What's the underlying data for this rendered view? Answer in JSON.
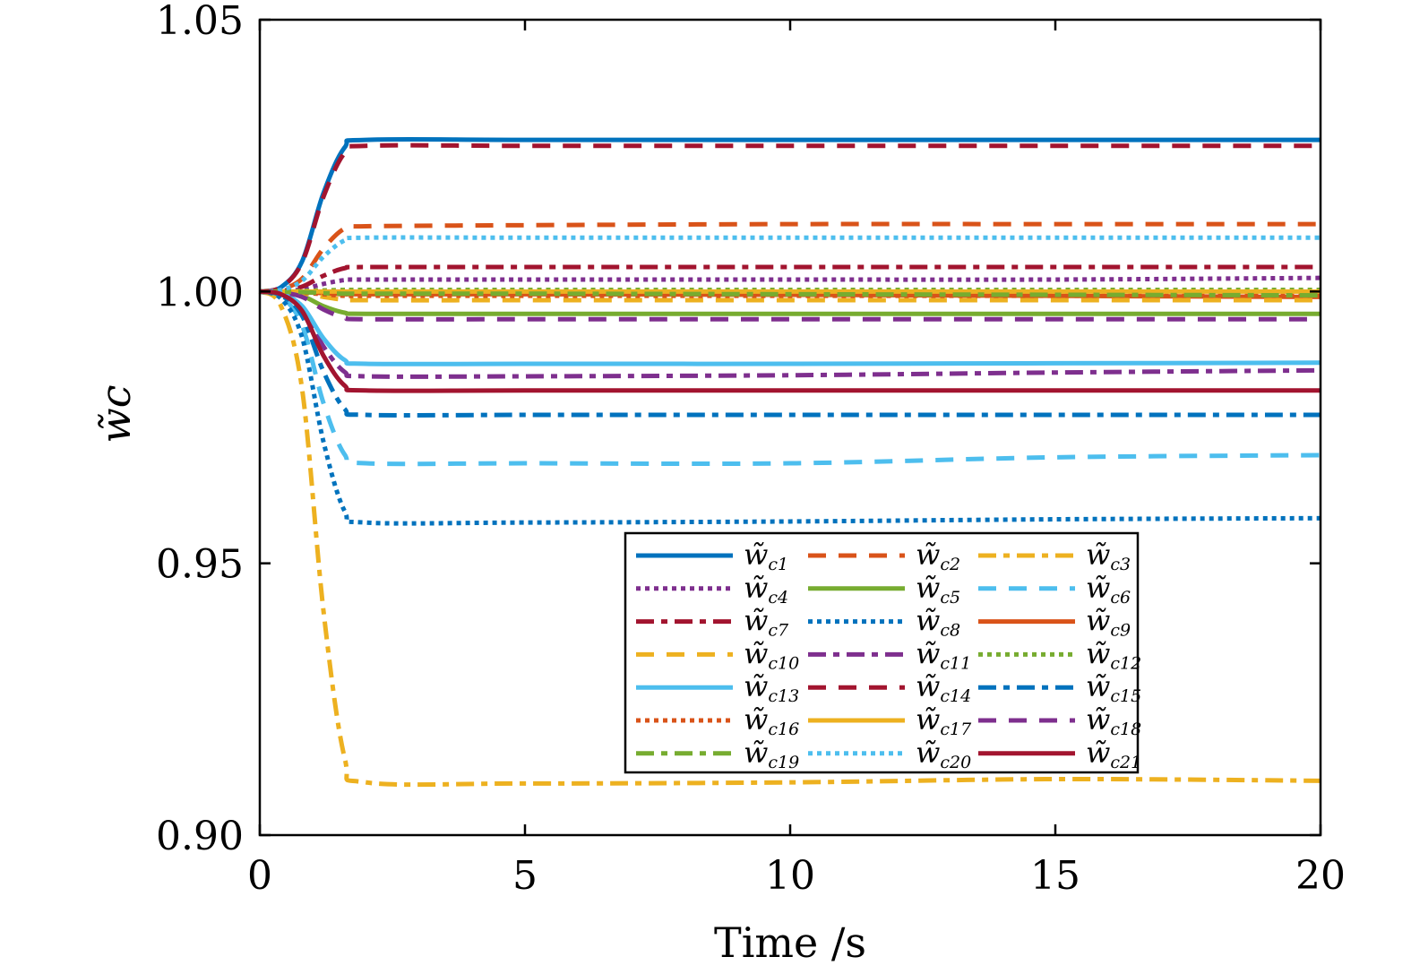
{
  "chart_data": {
    "type": "line",
    "title": "",
    "xlabel": "Time /s",
    "ylabel": "w̃c",
    "xlim": [
      0,
      20
    ],
    "ylim": [
      0.9,
      1.05
    ],
    "xticks": [
      "0",
      "5",
      "10",
      "15",
      "20"
    ],
    "yticks": [
      "0.90",
      "0.95",
      "1.00",
      "1.05"
    ],
    "grid": false,
    "legend_placement": "lower-right",
    "x": [
      0,
      0.4,
      0.8,
      1.2,
      1.6,
      2,
      5,
      10,
      15,
      20
    ],
    "series": [
      {
        "name": "w̃c1",
        "color": "#0072BD",
        "style": "solid",
        "values": [
          1,
          1.0008,
          1.0056,
          1.0181,
          1.0265,
          1.0279,
          1.0279,
          1.0279,
          1.0279,
          1.0279
        ]
      },
      {
        "name": "w̃c2",
        "color": "#D95319",
        "style": "dashed",
        "values": [
          1,
          1.0004,
          1.0024,
          1.0079,
          1.0116,
          1.012,
          1.0122,
          1.0124,
          1.0124,
          1.0124
        ]
      },
      {
        "name": "w̃c3",
        "color": "#EDB120",
        "style": "dashdot",
        "values": [
          1,
          0.9973,
          0.9819,
          0.9413,
          0.9142,
          0.9097,
          0.9095,
          0.9097,
          0.9103,
          0.91
        ]
      },
      {
        "name": "w̃c4",
        "color": "#7E2F8E",
        "style": "dotted",
        "values": [
          1,
          1.0001,
          1.0004,
          1.0014,
          1.0021,
          1.0022,
          1.0022,
          1.0022,
          1.0022,
          1.0025
        ]
      },
      {
        "name": "w̃c5",
        "color": "#77AC30",
        "style": "solid",
        "values": [
          1,
          0.9999,
          0.9992,
          0.9973,
          0.9961,
          0.9959,
          0.9959,
          0.9959,
          0.9959,
          0.9959
        ]
      },
      {
        "name": "w̃c6",
        "color": "#4DBEEE",
        "style": "dashed",
        "values": [
          1,
          0.9991,
          0.9937,
          0.9795,
          0.97,
          0.9684,
          0.9684,
          0.9684,
          0.9695,
          0.9699
        ]
      },
      {
        "name": "w̃c7",
        "color": "#A2142F",
        "style": "dashdot",
        "values": [
          1,
          1.0001,
          1.0009,
          1.0029,
          1.0043,
          1.0045,
          1.0045,
          1.0045,
          1.0045,
          1.0045
        ]
      },
      {
        "name": "w̃c8",
        "color": "#0072BD",
        "style": "dotted",
        "values": [
          1,
          0.9987,
          0.9915,
          0.9724,
          0.9596,
          0.9575,
          0.9575,
          0.9577,
          0.9581,
          0.9583
        ]
      },
      {
        "name": "w̃c9",
        "color": "#D95319",
        "style": "solid",
        "values": [
          1,
          1.0,
          0.9999,
          0.9997,
          0.9995,
          0.9995,
          0.9995,
          0.9994,
          0.9992,
          0.999
        ]
      },
      {
        "name": "w̃c10",
        "color": "#EDB120",
        "style": "dashed",
        "values": [
          1,
          1.0,
          0.9997,
          0.999,
          0.9985,
          0.9984,
          0.9984,
          0.9984,
          0.9984,
          0.9984
        ]
      },
      {
        "name": "w̃c11",
        "color": "#7E2F8E",
        "style": "dashdot",
        "values": [
          1,
          0.9995,
          0.9969,
          0.9899,
          0.9852,
          0.9844,
          0.9844,
          0.9846,
          0.9851,
          0.9855
        ]
      },
      {
        "name": "w̃c12",
        "color": "#77AC30",
        "style": "dotted",
        "values": [
          1,
          1.0,
          1.0001,
          1.0002,
          1.0003,
          1.0003,
          1.0003,
          1.0003,
          1.0003,
          1.0003
        ]
      },
      {
        "name": "w̃c13",
        "color": "#4DBEEE",
        "style": "solid",
        "values": [
          1,
          0.9996,
          0.9973,
          0.9914,
          0.9874,
          0.9867,
          0.9867,
          0.9867,
          0.9868,
          0.9869
        ]
      },
      {
        "name": "w̃c14",
        "color": "#A2142F",
        "style": "dashed",
        "values": [
          1,
          1.0008,
          1.0054,
          1.0174,
          1.0255,
          1.0268,
          1.0268,
          1.0268,
          1.0268,
          1.0268
        ]
      },
      {
        "name": "w̃c15",
        "color": "#0072BD",
        "style": "dashdot",
        "values": [
          1,
          0.9993,
          0.9955,
          0.9853,
          0.9784,
          0.9773,
          0.9773,
          0.9773,
          0.9773,
          0.9773
        ]
      },
      {
        "name": "w̃c16",
        "color": "#D95319",
        "style": "dotted",
        "values": [
          1,
          1.0,
          0.9998,
          0.9995,
          0.9992,
          0.9992,
          0.9992,
          0.9992,
          0.9992,
          0.9992
        ]
      },
      {
        "name": "w̃c17",
        "color": "#EDB120",
        "style": "solid",
        "values": [
          1,
          1.0,
          1.0,
          1.0,
          1.0,
          1.0,
          1.0,
          1.0,
          1.0,
          1.0
        ]
      },
      {
        "name": "w̃c18",
        "color": "#7E2F8E",
        "style": "dashed",
        "values": [
          1,
          0.9998,
          0.999,
          0.9967,
          0.9952,
          0.9949,
          0.9949,
          0.9949,
          0.9949,
          0.9949
        ]
      },
      {
        "name": "w̃c19",
        "color": "#77AC30",
        "style": "dashdot",
        "values": [
          1,
          1.0,
          0.9999,
          0.9997,
          0.9996,
          0.9996,
          0.9996,
          0.9995,
          0.9994,
          0.9993
        ]
      },
      {
        "name": "w̃c20",
        "color": "#4DBEEE",
        "style": "dotted",
        "values": [
          1,
          1.0003,
          1.002,
          1.0064,
          1.0094,
          1.0099,
          1.0099,
          1.0099,
          1.0099,
          1.0099
        ]
      },
      {
        "name": "w̃c21",
        "color": "#A2142F",
        "style": "solid",
        "values": [
          1,
          0.9995,
          0.9964,
          0.9882,
          0.9827,
          0.9818,
          0.9818,
          0.9818,
          0.9818,
          0.9818
        ]
      }
    ]
  }
}
